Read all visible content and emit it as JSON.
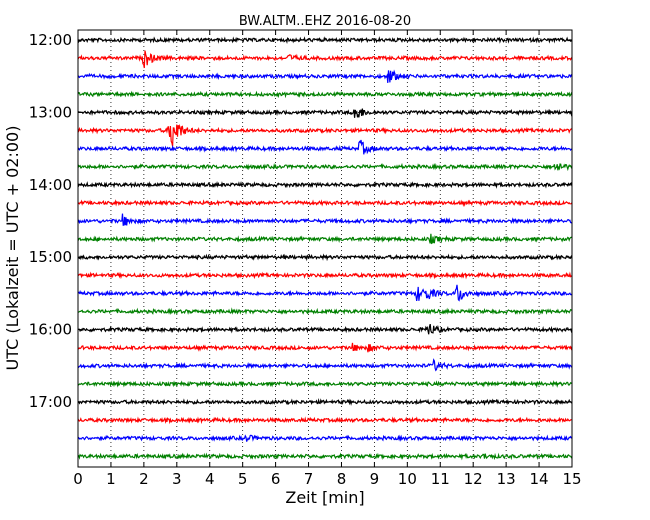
{
  "chart_data": {
    "type": "line",
    "title": "BW.ALTM..EHZ 2016-08-20",
    "xlabel": "Zeit  [min]",
    "ylabel": "UTC (Lokalzeit = UTC + 02:00)",
    "xlim": [
      0,
      15
    ],
    "x_ticks": [
      "0",
      "1",
      "2",
      "3",
      "4",
      "5",
      "6",
      "7",
      "8",
      "9",
      "10",
      "11",
      "12",
      "13",
      "14",
      "15"
    ],
    "y_tick_labels": [
      "12:00",
      "13:00",
      "14:00",
      "15:00",
      "16:00",
      "17:00"
    ],
    "grid": "dotted",
    "row_interval_min": 15,
    "row_colors": [
      "#000000",
      "#ff0000",
      "#0000ff",
      "#008000"
    ],
    "series": [
      {
        "start": "12:00",
        "events": []
      },
      {
        "start": "12:15",
        "events": [
          {
            "t": 2.0,
            "amp": 10
          },
          {
            "t": 6.4,
            "amp": 3
          }
        ]
      },
      {
        "start": "12:30",
        "events": [
          {
            "t": 9.4,
            "amp": 9
          }
        ]
      },
      {
        "start": "12:45",
        "events": []
      },
      {
        "start": "13:00",
        "events": [
          {
            "t": 8.4,
            "amp": 10
          }
        ]
      },
      {
        "start": "13:15",
        "events": [
          {
            "t": 2.75,
            "amp": 9
          },
          {
            "t": 2.85,
            "amp": 16
          }
        ]
      },
      {
        "start": "13:30",
        "events": [
          {
            "t": 8.55,
            "amp": 9
          }
        ]
      },
      {
        "start": "13:45",
        "events": [
          {
            "t": 14.5,
            "amp": 6
          }
        ]
      },
      {
        "start": "14:00",
        "events": []
      },
      {
        "start": "14:15",
        "events": []
      },
      {
        "start": "14:30",
        "events": [
          {
            "t": 1.35,
            "amp": 6
          }
        ]
      },
      {
        "start": "14:45",
        "events": [
          {
            "t": 10.7,
            "amp": 4
          }
        ]
      },
      {
        "start": "15:00",
        "events": []
      },
      {
        "start": "15:15",
        "events": []
      },
      {
        "start": "15:30",
        "events": [
          {
            "t": 10.3,
            "amp": 8
          },
          {
            "t": 10.6,
            "amp": 5
          },
          {
            "t": 11.5,
            "amp": 11
          }
        ]
      },
      {
        "start": "15:45",
        "events": []
      },
      {
        "start": "16:00",
        "events": [
          {
            "t": 10.6,
            "amp": 8
          }
        ]
      },
      {
        "start": "16:15",
        "events": [
          {
            "t": 8.3,
            "amp": 4
          },
          {
            "t": 8.8,
            "amp": 3
          }
        ]
      },
      {
        "start": "16:30",
        "events": [
          {
            "t": 10.8,
            "amp": 5
          }
        ]
      },
      {
        "start": "16:45",
        "events": []
      },
      {
        "start": "17:00",
        "events": []
      },
      {
        "start": "17:15",
        "events": []
      },
      {
        "start": "17:30",
        "events": [
          {
            "t": 5.1,
            "amp": 3
          }
        ]
      },
      {
        "start": "17:45",
        "events": [
          {
            "t": 12.3,
            "amp": 2
          }
        ]
      }
    ]
  }
}
